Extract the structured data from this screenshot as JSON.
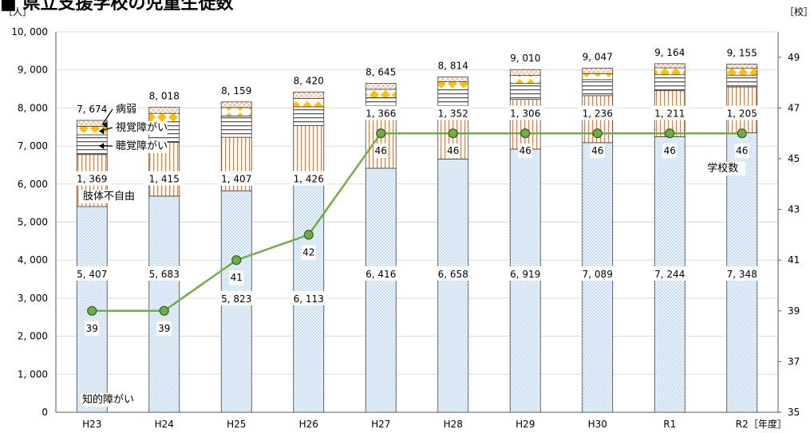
{
  "title": "■ 県立支援学校の児童生徒数",
  "chart_data": {
    "type": "bar",
    "stacked": true,
    "categories": [
      "H23",
      "H24",
      "H25",
      "H26",
      "H27",
      "H28",
      "H29",
      "H30",
      "R1",
      "R2"
    ],
    "x_unit": "［年度］",
    "y_left": {
      "unit": "［人］",
      "range": [
        0,
        10000
      ],
      "ticks": [
        "0",
        "1, 000",
        "2, 000",
        "3, 000",
        "4, 000",
        "5, 000",
        "6, 000",
        "7, 000",
        "8, 000",
        "9, 000",
        "10, 000"
      ]
    },
    "y_right": {
      "unit": "［校］",
      "range": [
        35,
        50
      ],
      "ticks": [
        "35",
        "37",
        "39",
        "41",
        "43",
        "45",
        "47",
        "49"
      ]
    },
    "series": [
      {
        "name": "知的障がい",
        "color": "#bdd7ee",
        "values": [
          5407,
          5683,
          5823,
          6113,
          6416,
          6658,
          6919,
          7089,
          7244,
          7348
        ]
      },
      {
        "name": "肢体不自由",
        "color": "#f4b183",
        "values": [
          1369,
          1415,
          1407,
          1426,
          1366,
          1352,
          1306,
          1236,
          1211,
          1205
        ]
      },
      {
        "name": "聴覚障がい",
        "color": "#7f7f7f",
        "values": [
          520,
          540,
          560,
          490,
          490,
          470,
          420,
          420,
          420,
          310
        ]
      },
      {
        "name": "視覚障がい",
        "color": "#ffc000",
        "values": [
          220,
          220,
          220,
          220,
          220,
          210,
          210,
          160,
          180,
          180
        ]
      },
      {
        "name": "病弱",
        "color": "#f8cbad",
        "values": [
          158,
          160,
          149,
          171,
          153,
          124,
          155,
          142,
          109,
          112
        ]
      }
    ],
    "totals": [
      7674,
      8018,
      8159,
      8420,
      8645,
      8814,
      9010,
      9047,
      9164,
      9155
    ],
    "labels": {
      "intellectual": [
        "5, 407",
        "5, 683",
        "5, 823",
        "6, 113",
        "6, 416",
        "6, 658",
        "6, 919",
        "7, 089",
        "7, 244",
        "7, 348"
      ],
      "physical": [
        "1, 369",
        "1, 415",
        "1, 407",
        "1, 426",
        "1, 366",
        "1, 352",
        "1, 306",
        "1, 236",
        "1, 211",
        "1, 205"
      ],
      "totals": [
        "7, 674",
        "8, 018",
        "8, 159",
        "8, 420",
        "8, 645",
        "8, 814",
        "9, 010",
        "9, 047",
        "9, 164",
        "9, 155"
      ]
    },
    "line": {
      "name": "学校数",
      "color": "#70ad47",
      "values": [
        39,
        39,
        41,
        42,
        46,
        46,
        46,
        46,
        46,
        46
      ]
    },
    "grid": true
  }
}
